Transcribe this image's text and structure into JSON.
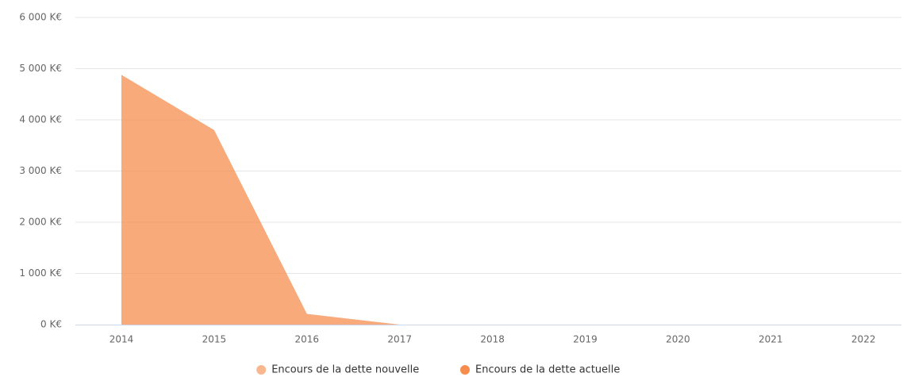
{
  "chart_data": {
    "type": "stacked-area",
    "categories": [
      "2014",
      "2015",
      "2016",
      "2017",
      "2018",
      "2019",
      "2020",
      "2021",
      "2022"
    ],
    "series": [
      {
        "name": "Encours de la dette actuelle",
        "color": "#f68d4f",
        "values": [
          4880,
          3800,
          210,
          0,
          0,
          0,
          0,
          0,
          0
        ]
      },
      {
        "name": "Encours de la dette nouvelle",
        "color": "#f8b78f",
        "values": [
          0,
          0,
          0,
          0,
          0,
          0,
          0,
          0,
          0
        ]
      }
    ],
    "legend_order": [
      1,
      0
    ],
    "ylim": [
      0,
      6000
    ],
    "yticks": [
      {
        "value": 0,
        "label": "0 K€"
      },
      {
        "value": 1000,
        "label": "1 000 K€"
      },
      {
        "value": 2000,
        "label": "2 000 K€"
      },
      {
        "value": 3000,
        "label": "3 000 K€"
      },
      {
        "value": 4000,
        "label": "4 000 K€"
      },
      {
        "value": 5000,
        "label": "5 000 K€"
      },
      {
        "value": 6000,
        "label": "6 000 K€"
      }
    ],
    "grid": true
  }
}
